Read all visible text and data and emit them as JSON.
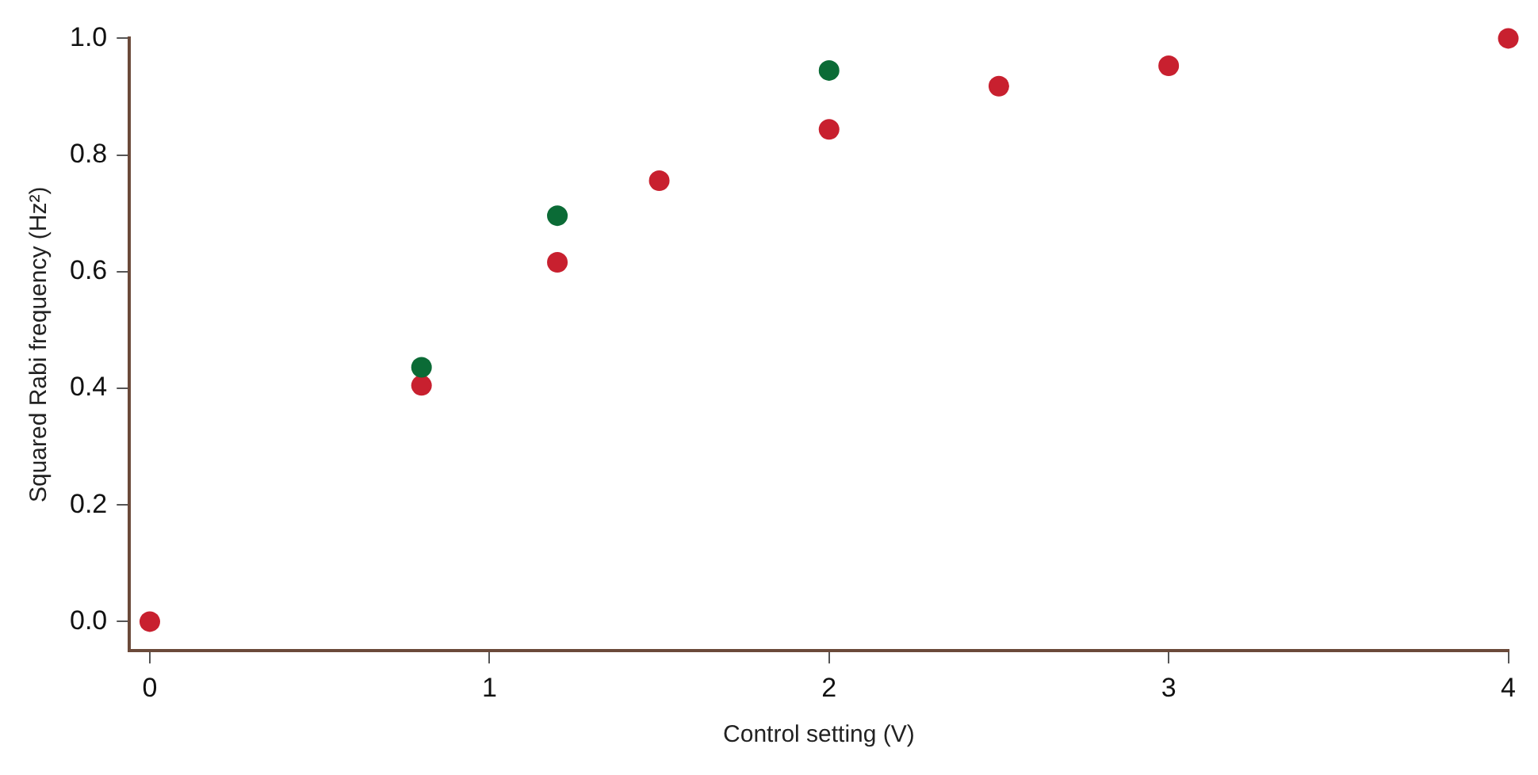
{
  "chart_data": {
    "type": "scatter",
    "xlabel": "Control setting (V)",
    "ylabel": "Squared Rabi frequency (Hz²)",
    "xlim": [
      -0.06,
      4
    ],
    "ylim": [
      -0.05,
      1.0
    ],
    "xticks": [
      0,
      1,
      2,
      3,
      4
    ],
    "yticks": [
      {
        "value": 0,
        "label": "0.0"
      },
      0.2,
      0.4,
      0.6,
      0.8,
      {
        "value": 1,
        "label": "1.0"
      }
    ],
    "grid": false,
    "legend": false,
    "marker": "circle",
    "series": [
      {
        "color": "#0b6b36",
        "x": [
          0.8,
          1.2,
          2
        ],
        "values": [
          0.436,
          0.696,
          0.945
        ]
      },
      {
        "color": "#c8202f",
        "x": [
          0,
          0.8,
          1.2,
          1.5,
          2,
          2.5,
          3,
          4
        ],
        "values": [
          0,
          0.405,
          0.616,
          0.756,
          0.844,
          0.918,
          0.953,
          1.0
        ]
      }
    ]
  }
}
